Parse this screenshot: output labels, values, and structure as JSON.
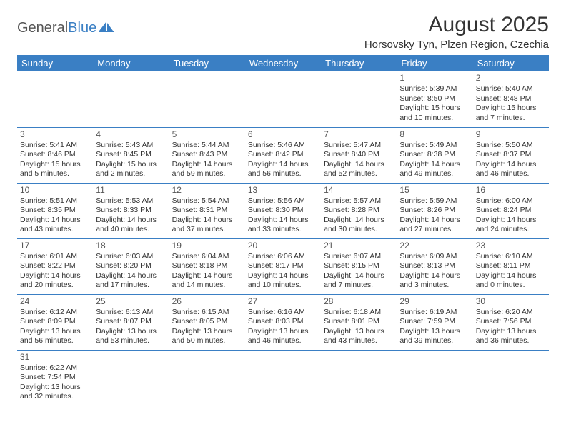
{
  "brand": {
    "general": "General",
    "blue": "Blue",
    "sail_color": "#3a7fc4"
  },
  "title": "August 2025",
  "location": "Horsovsky Tyn, Plzen Region, Czechia",
  "header_bg": "#3a7fc4",
  "header_fg": "#ffffff",
  "rule_color": "#3a7fc4",
  "day_names": [
    "Sunday",
    "Monday",
    "Tuesday",
    "Wednesday",
    "Thursday",
    "Friday",
    "Saturday"
  ],
  "weeks": [
    [
      null,
      null,
      null,
      null,
      null,
      {
        "n": "1",
        "sr": "Sunrise: 5:39 AM",
        "ss": "Sunset: 8:50 PM",
        "d1": "Daylight: 15 hours",
        "d2": "and 10 minutes."
      },
      {
        "n": "2",
        "sr": "Sunrise: 5:40 AM",
        "ss": "Sunset: 8:48 PM",
        "d1": "Daylight: 15 hours",
        "d2": "and 7 minutes."
      }
    ],
    [
      {
        "n": "3",
        "sr": "Sunrise: 5:41 AM",
        "ss": "Sunset: 8:46 PM",
        "d1": "Daylight: 15 hours",
        "d2": "and 5 minutes."
      },
      {
        "n": "4",
        "sr": "Sunrise: 5:43 AM",
        "ss": "Sunset: 8:45 PM",
        "d1": "Daylight: 15 hours",
        "d2": "and 2 minutes."
      },
      {
        "n": "5",
        "sr": "Sunrise: 5:44 AM",
        "ss": "Sunset: 8:43 PM",
        "d1": "Daylight: 14 hours",
        "d2": "and 59 minutes."
      },
      {
        "n": "6",
        "sr": "Sunrise: 5:46 AM",
        "ss": "Sunset: 8:42 PM",
        "d1": "Daylight: 14 hours",
        "d2": "and 56 minutes."
      },
      {
        "n": "7",
        "sr": "Sunrise: 5:47 AM",
        "ss": "Sunset: 8:40 PM",
        "d1": "Daylight: 14 hours",
        "d2": "and 52 minutes."
      },
      {
        "n": "8",
        "sr": "Sunrise: 5:49 AM",
        "ss": "Sunset: 8:38 PM",
        "d1": "Daylight: 14 hours",
        "d2": "and 49 minutes."
      },
      {
        "n": "9",
        "sr": "Sunrise: 5:50 AM",
        "ss": "Sunset: 8:37 PM",
        "d1": "Daylight: 14 hours",
        "d2": "and 46 minutes."
      }
    ],
    [
      {
        "n": "10",
        "sr": "Sunrise: 5:51 AM",
        "ss": "Sunset: 8:35 PM",
        "d1": "Daylight: 14 hours",
        "d2": "and 43 minutes."
      },
      {
        "n": "11",
        "sr": "Sunrise: 5:53 AM",
        "ss": "Sunset: 8:33 PM",
        "d1": "Daylight: 14 hours",
        "d2": "and 40 minutes."
      },
      {
        "n": "12",
        "sr": "Sunrise: 5:54 AM",
        "ss": "Sunset: 8:31 PM",
        "d1": "Daylight: 14 hours",
        "d2": "and 37 minutes."
      },
      {
        "n": "13",
        "sr": "Sunrise: 5:56 AM",
        "ss": "Sunset: 8:30 PM",
        "d1": "Daylight: 14 hours",
        "d2": "and 33 minutes."
      },
      {
        "n": "14",
        "sr": "Sunrise: 5:57 AM",
        "ss": "Sunset: 8:28 PM",
        "d1": "Daylight: 14 hours",
        "d2": "and 30 minutes."
      },
      {
        "n": "15",
        "sr": "Sunrise: 5:59 AM",
        "ss": "Sunset: 8:26 PM",
        "d1": "Daylight: 14 hours",
        "d2": "and 27 minutes."
      },
      {
        "n": "16",
        "sr": "Sunrise: 6:00 AM",
        "ss": "Sunset: 8:24 PM",
        "d1": "Daylight: 14 hours",
        "d2": "and 24 minutes."
      }
    ],
    [
      {
        "n": "17",
        "sr": "Sunrise: 6:01 AM",
        "ss": "Sunset: 8:22 PM",
        "d1": "Daylight: 14 hours",
        "d2": "and 20 minutes."
      },
      {
        "n": "18",
        "sr": "Sunrise: 6:03 AM",
        "ss": "Sunset: 8:20 PM",
        "d1": "Daylight: 14 hours",
        "d2": "and 17 minutes."
      },
      {
        "n": "19",
        "sr": "Sunrise: 6:04 AM",
        "ss": "Sunset: 8:18 PM",
        "d1": "Daylight: 14 hours",
        "d2": "and 14 minutes."
      },
      {
        "n": "20",
        "sr": "Sunrise: 6:06 AM",
        "ss": "Sunset: 8:17 PM",
        "d1": "Daylight: 14 hours",
        "d2": "and 10 minutes."
      },
      {
        "n": "21",
        "sr": "Sunrise: 6:07 AM",
        "ss": "Sunset: 8:15 PM",
        "d1": "Daylight: 14 hours",
        "d2": "and 7 minutes."
      },
      {
        "n": "22",
        "sr": "Sunrise: 6:09 AM",
        "ss": "Sunset: 8:13 PM",
        "d1": "Daylight: 14 hours",
        "d2": "and 3 minutes."
      },
      {
        "n": "23",
        "sr": "Sunrise: 6:10 AM",
        "ss": "Sunset: 8:11 PM",
        "d1": "Daylight: 14 hours",
        "d2": "and 0 minutes."
      }
    ],
    [
      {
        "n": "24",
        "sr": "Sunrise: 6:12 AM",
        "ss": "Sunset: 8:09 PM",
        "d1": "Daylight: 13 hours",
        "d2": "and 56 minutes."
      },
      {
        "n": "25",
        "sr": "Sunrise: 6:13 AM",
        "ss": "Sunset: 8:07 PM",
        "d1": "Daylight: 13 hours",
        "d2": "and 53 minutes."
      },
      {
        "n": "26",
        "sr": "Sunrise: 6:15 AM",
        "ss": "Sunset: 8:05 PM",
        "d1": "Daylight: 13 hours",
        "d2": "and 50 minutes."
      },
      {
        "n": "27",
        "sr": "Sunrise: 6:16 AM",
        "ss": "Sunset: 8:03 PM",
        "d1": "Daylight: 13 hours",
        "d2": "and 46 minutes."
      },
      {
        "n": "28",
        "sr": "Sunrise: 6:18 AM",
        "ss": "Sunset: 8:01 PM",
        "d1": "Daylight: 13 hours",
        "d2": "and 43 minutes."
      },
      {
        "n": "29",
        "sr": "Sunrise: 6:19 AM",
        "ss": "Sunset: 7:59 PM",
        "d1": "Daylight: 13 hours",
        "d2": "and 39 minutes."
      },
      {
        "n": "30",
        "sr": "Sunrise: 6:20 AM",
        "ss": "Sunset: 7:56 PM",
        "d1": "Daylight: 13 hours",
        "d2": "and 36 minutes."
      }
    ],
    [
      {
        "n": "31",
        "sr": "Sunrise: 6:22 AM",
        "ss": "Sunset: 7:54 PM",
        "d1": "Daylight: 13 hours",
        "d2": "and 32 minutes."
      },
      null,
      null,
      null,
      null,
      null,
      null
    ]
  ]
}
